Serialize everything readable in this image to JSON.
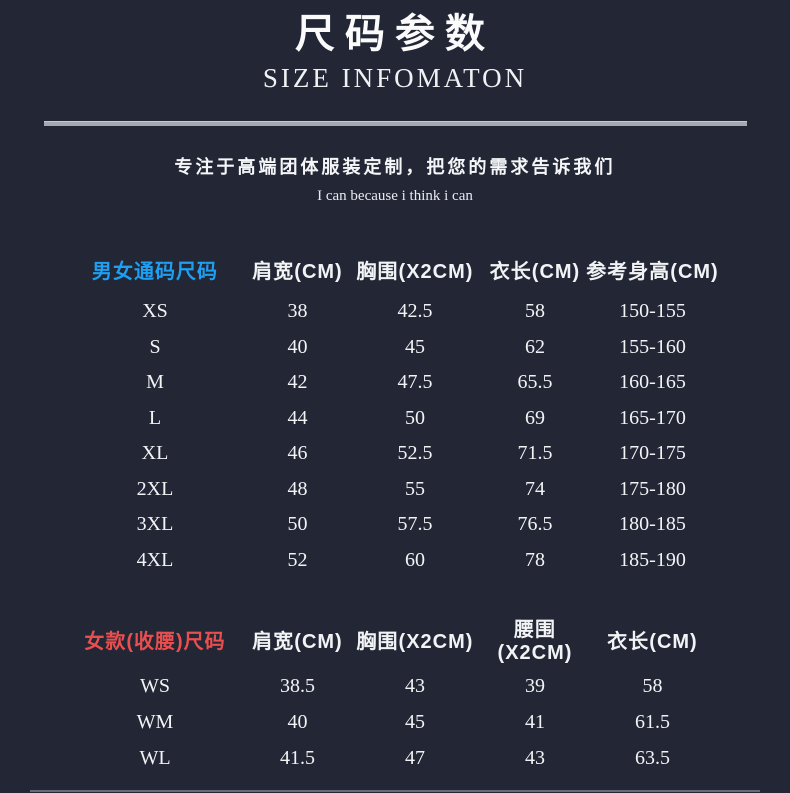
{
  "header": {
    "title_cn": "尺码参数",
    "title_en": "SIZE INFOMATON",
    "tagline": "专注于高端团体服装定制，把您的需求告诉我们",
    "slogan": "I can because i think i can"
  },
  "colors": {
    "background": "#222635",
    "text": "#f2f3f5",
    "unisex_title_accent": "#1e9ff2",
    "women_title_accent": "#ea4f4f",
    "divider": "#a4a8b0"
  },
  "unisex_table": {
    "title": "男女通码尺码",
    "columns": [
      "肩宽(CM)",
      "胸围(X2CM)",
      "衣长(CM)",
      "参考身高(CM)"
    ],
    "rows": [
      {
        "size": "XS",
        "values": [
          "38",
          "42.5",
          "58",
          "150-155"
        ]
      },
      {
        "size": "S",
        "values": [
          "40",
          "45",
          "62",
          "155-160"
        ]
      },
      {
        "size": "M",
        "values": [
          "42",
          "47.5",
          "65.5",
          "160-165"
        ]
      },
      {
        "size": "L",
        "values": [
          "44",
          "50",
          "69",
          "165-170"
        ]
      },
      {
        "size": "XL",
        "values": [
          "46",
          "52.5",
          "71.5",
          "170-175"
        ]
      },
      {
        "size": "2XL",
        "values": [
          "48",
          "55",
          "74",
          "175-180"
        ]
      },
      {
        "size": "3XL",
        "values": [
          "50",
          "57.5",
          "76.5",
          "180-185"
        ]
      },
      {
        "size": "4XL",
        "values": [
          "52",
          "60",
          "78",
          "185-190"
        ]
      }
    ]
  },
  "women_table": {
    "title": "女款(收腰)尺码",
    "columns": [
      "肩宽(CM)",
      "胸围(X2CM)",
      "腰围 (X2CM)",
      "衣长(CM)"
    ],
    "rows": [
      {
        "size": "WS",
        "values": [
          "38.5",
          "43",
          "39",
          "58"
        ]
      },
      {
        "size": "WM",
        "values": [
          "40",
          "45",
          "41",
          "61.5"
        ]
      },
      {
        "size": "WL",
        "values": [
          "41.5",
          "47",
          "43",
          "63.5"
        ]
      }
    ]
  }
}
